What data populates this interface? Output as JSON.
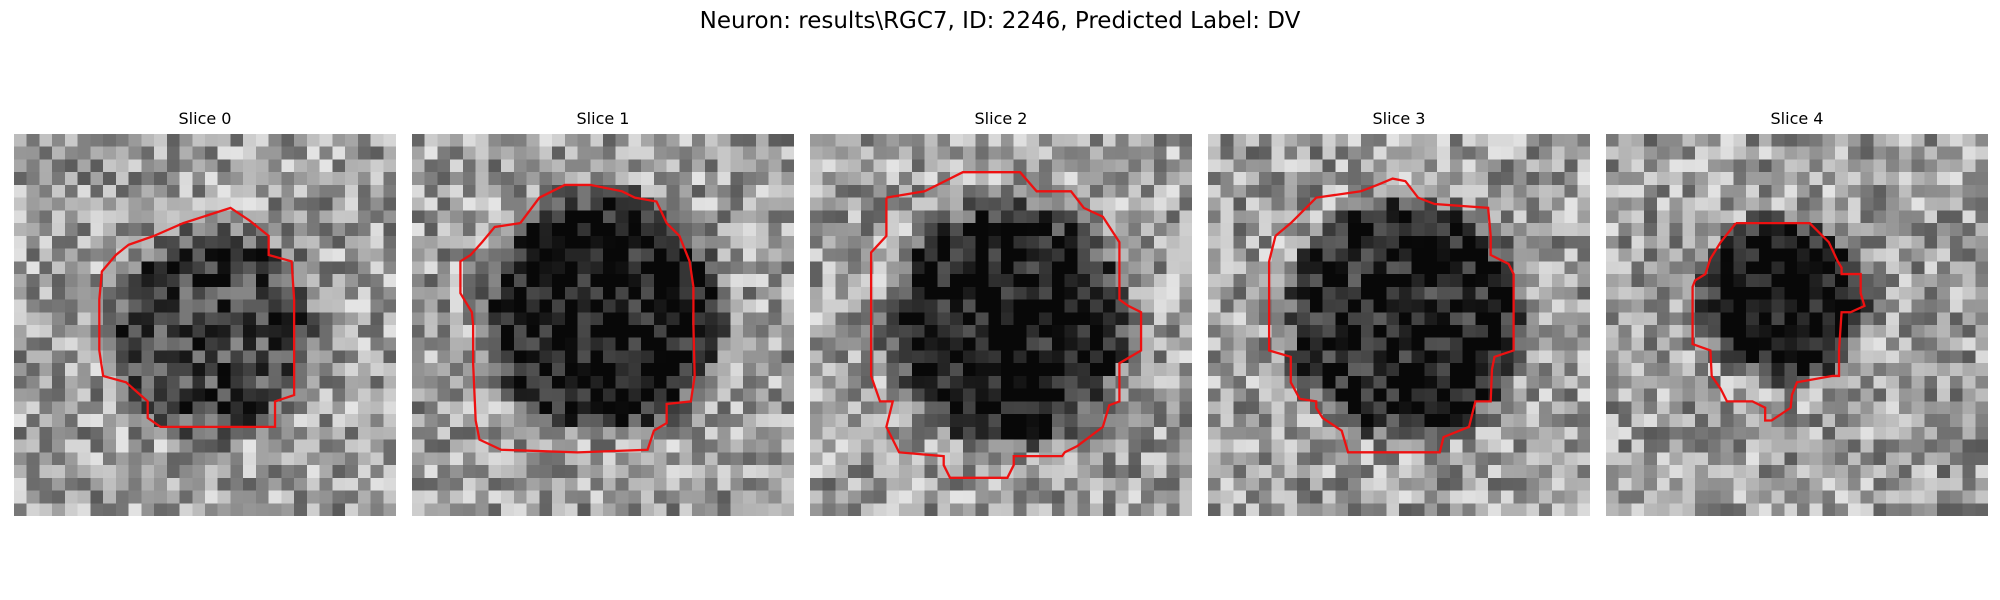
{
  "figure": {
    "title": "Neuron: results\\RGC7, ID: 2246, Predicted Label: DV",
    "contour_color": "#ee1111",
    "panels": [
      {
        "label": "Slice 0",
        "icon": "grayscale-microscopy-slice",
        "blob": {
          "cx": 15.0,
          "cy": 15.0,
          "r": 8.5,
          "dark": 0.35
        }
      },
      {
        "label": "Slice 1",
        "icon": "grayscale-microscopy-slice",
        "blob": {
          "cx": 14.5,
          "cy": 13.5,
          "r": 9.5,
          "dark": 0.55
        }
      },
      {
        "label": "Slice 2",
        "icon": "grayscale-microscopy-slice",
        "blob": {
          "cx": 15.0,
          "cy": 14.5,
          "r": 9.5,
          "dark": 0.55
        }
      },
      {
        "label": "Slice 3",
        "icon": "grayscale-microscopy-slice",
        "blob": {
          "cx": 15.0,
          "cy": 14.0,
          "r": 9.5,
          "dark": 0.5
        }
      },
      {
        "label": "Slice 4",
        "icon": "grayscale-microscopy-slice",
        "blob": {
          "cx": 13.5,
          "cy": 12.5,
          "r": 6.5,
          "dark": 0.6
        }
      }
    ]
  }
}
